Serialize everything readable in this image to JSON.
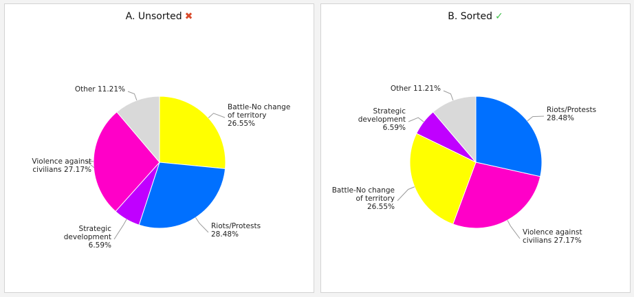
{
  "chart_data": [
    {
      "type": "pie",
      "title": "A. Unsorted",
      "title_mark": "✖",
      "slices": [
        {
          "key": "battle",
          "label_lines": [
            "Battle-No change",
            "of territory",
            "26.55%"
          ],
          "value": 26.55,
          "color": "#ffff00"
        },
        {
          "key": "riots",
          "label_lines": [
            "Riots/Protests",
            "28.48%"
          ],
          "value": 28.48,
          "color": "#0070ff"
        },
        {
          "key": "strategic",
          "label_lines": [
            "Strategic",
            "development",
            "6.59%"
          ],
          "value": 6.59,
          "color": "#c000ff"
        },
        {
          "key": "violence",
          "label_lines": [
            "Violence against",
            "civilians 27.17%"
          ],
          "value": 27.17,
          "color": "#ff00c8"
        },
        {
          "key": "other",
          "label_lines": [
            "Other 11.21%"
          ],
          "value": 11.21,
          "color": "#d9d9d9"
        }
      ]
    },
    {
      "type": "pie",
      "title": "B. Sorted",
      "title_mark": "✓",
      "slices": [
        {
          "key": "riots",
          "label_lines": [
            "Riots/Protests",
            "28.48%"
          ],
          "value": 28.48,
          "color": "#0070ff"
        },
        {
          "key": "violence",
          "label_lines": [
            "Violence against",
            "civilians 27.17%"
          ],
          "value": 27.17,
          "color": "#ff00c8"
        },
        {
          "key": "battle",
          "label_lines": [
            "Battle-No change",
            "of territory",
            "26.55%"
          ],
          "value": 26.55,
          "color": "#ffff00"
        },
        {
          "key": "strategic",
          "label_lines": [
            "Strategic",
            "development",
            "6.59%"
          ],
          "value": 6.59,
          "color": "#c000ff"
        },
        {
          "key": "other",
          "label_lines": [
            "Other 11.21%"
          ],
          "value": 11.21,
          "color": "#d9d9d9"
        }
      ]
    }
  ]
}
